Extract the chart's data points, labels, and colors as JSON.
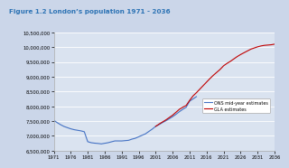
{
  "title": "Figure 1.2 London’s population 1971 - 2036",
  "title_color": "#2E74B5",
  "bg_color": "#CBD6E9",
  "plot_bg_color": "#DAE3F0",
  "grid_color": "#FFFFFF",
  "ylim": [
    6500000,
    10500000
  ],
  "yticks": [
    6500000,
    7000000,
    7500000,
    8000000,
    8500000,
    9000000,
    9500000,
    10000000,
    10500000
  ],
  "xticks": [
    1971,
    1976,
    1981,
    1986,
    1991,
    1996,
    2001,
    2006,
    2011,
    2016,
    2021,
    2026,
    2031,
    2036
  ],
  "ons_color": "#4472C4",
  "gla_color": "#C00000",
  "legend_ons": "ONS mid-year estimates",
  "legend_gla": "GLA estimates",
  "ons_years": [
    1971,
    1972,
    1973,
    1974,
    1975,
    1976,
    1977,
    1978,
    1979,
    1980,
    1981,
    1982,
    1983,
    1984,
    1985,
    1986,
    1987,
    1988,
    1989,
    1990,
    1991,
    1992,
    1993,
    1994,
    1995,
    1996,
    1997,
    1998,
    1999,
    2000,
    2001,
    2002,
    2003,
    2004,
    2005,
    2006,
    2007,
    2008,
    2009,
    2010,
    2011,
    2012,
    2013
  ],
  "ons_values": [
    7528000,
    7450000,
    7380000,
    7320000,
    7280000,
    7240000,
    7210000,
    7190000,
    7170000,
    7140000,
    6805000,
    6770000,
    6755000,
    6745000,
    6730000,
    6750000,
    6770000,
    6800000,
    6830000,
    6830000,
    6829000,
    6840000,
    6850000,
    6890000,
    6920000,
    6970000,
    7020000,
    7070000,
    7150000,
    7230000,
    7322000,
    7380000,
    7450000,
    7510000,
    7580000,
    7650000,
    7730000,
    7820000,
    7900000,
    7970000,
    8174000,
    8250000,
    8326000
  ],
  "gla_years": [
    2001,
    2002,
    2003,
    2004,
    2005,
    2006,
    2007,
    2008,
    2009,
    2010,
    2011,
    2012,
    2013,
    2014,
    2015,
    2016,
    2017,
    2018,
    2019,
    2020,
    2021,
    2022,
    2023,
    2024,
    2025,
    2026,
    2027,
    2028,
    2029,
    2030,
    2031,
    2032,
    2033,
    2034,
    2035,
    2036
  ],
  "gla_values": [
    7322000,
    7400000,
    7470000,
    7540000,
    7620000,
    7700000,
    7800000,
    7900000,
    7970000,
    8030000,
    8200000,
    8350000,
    8460000,
    8580000,
    8700000,
    8820000,
    8940000,
    9050000,
    9150000,
    9250000,
    9370000,
    9450000,
    9520000,
    9600000,
    9680000,
    9750000,
    9810000,
    9870000,
    9930000,
    9970000,
    10010000,
    10040000,
    10060000,
    10070000,
    10080000,
    10100000
  ]
}
